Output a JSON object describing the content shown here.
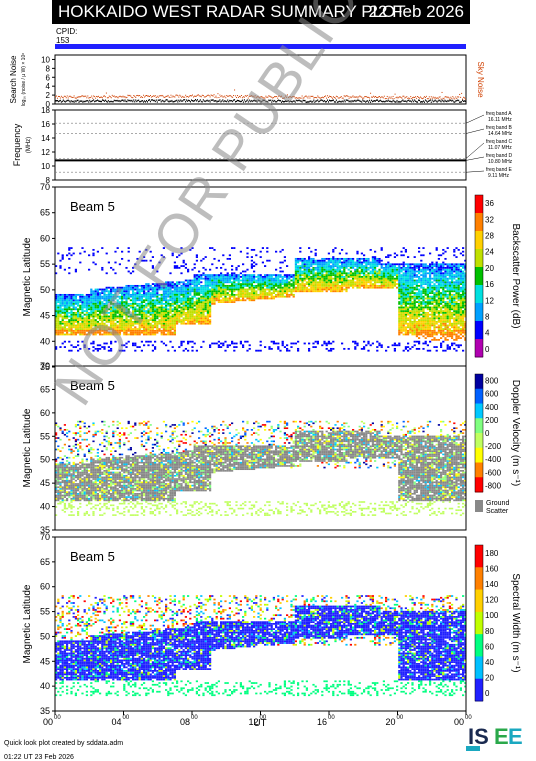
{
  "header": {
    "title": "HOKKAIDO WEST RADAR SUMMARY PLOT",
    "date": "22 Feb 2026",
    "cpid_label": "CPID:",
    "cpid_value": "153"
  },
  "watermark": "NOT FOR PUBLICATION",
  "footer": {
    "line1": "Quick look plot created by sddata.adm",
    "line2": "01:22 UT 23 Feb 2026"
  },
  "logo_text": "ISEE",
  "colors": {
    "power": [
      "#ffffff",
      "#b000b0",
      "#0000ff",
      "#00a0ff",
      "#00e0e0",
      "#00c000",
      "#c0e000",
      "#ffd000",
      "#ff8000",
      "#ff0000"
    ],
    "velocity": [
      "#ff0000",
      "#ff8000",
      "#ffff00",
      "#c0ff60",
      "#80ff80",
      "#00c8ff",
      "#0060ff",
      "#0000a0"
    ],
    "width": [
      "#2020ff",
      "#00c0ff",
      "#00ff80",
      "#c0ff00",
      "#ffd000",
      "#ff8000",
      "#ff0000"
    ],
    "ground": "#888888",
    "noise_sky": "#d04000",
    "noise_search": "#000000",
    "cpid_bar": "#2020ff"
  },
  "chart_data": [
    {
      "type": "scatter",
      "panel": "noise",
      "ylabel": "Search Noise",
      "ylabel_units": "log₁₀ (noise / µ W) × 10⁶",
      "ylim": [
        0,
        11
      ],
      "yticks": [
        0,
        2,
        4,
        6,
        8,
        10
      ],
      "legend": "Sky Noise",
      "series": [
        {
          "name": "Sky Noise",
          "x": [
            0,
            4,
            8,
            12,
            16,
            20,
            24
          ],
          "values": [
            1.6,
            1.8,
            1.9,
            1.7,
            1.7,
            1.6,
            1.5
          ]
        },
        {
          "name": "Search Noise",
          "x": [
            0,
            4,
            8,
            12,
            16,
            20,
            24
          ],
          "values": [
            0.8,
            0.8,
            0.9,
            0.8,
            0.8,
            0.8,
            0.8
          ]
        }
      ]
    },
    {
      "type": "line",
      "panel": "frequency",
      "ylabel": "Frequency",
      "ylabel_units": "(MHz)",
      "ylim": [
        8,
        18
      ],
      "yticks": [
        8,
        10,
        12,
        14,
        16,
        18
      ],
      "bands": [
        {
          "label": "freq band A",
          "value": "16.11 MHz"
        },
        {
          "label": "freq band B",
          "value": "14.64 MHz"
        },
        {
          "label": "freq band C",
          "value": "11.07 MHz"
        },
        {
          "label": "freq band D",
          "value": "10.80 MHz"
        },
        {
          "label": "freq band E",
          "value": "9.11 MHz"
        }
      ],
      "operating_frequency": [
        {
          "x": 0,
          "y": 10.8
        },
        {
          "x": 24,
          "y": 10.8
        }
      ]
    },
    {
      "type": "heatmap",
      "panel": "power",
      "label": "Beam  5",
      "ylabel": "Magnetic Latitude",
      "ylim": [
        35,
        70
      ],
      "yticks": [
        35,
        40,
        45,
        50,
        55,
        60,
        65,
        70
      ],
      "colorbar_label": "Backscatter Power (dB)",
      "colorbar_ticks": [
        "0",
        "4",
        "8",
        "12",
        "16",
        "20",
        "24",
        "28",
        "32",
        "36"
      ],
      "scatter_extent": {
        "lat_min": 39,
        "lat_max": 58
      }
    },
    {
      "type": "heatmap",
      "panel": "velocity",
      "label": "Beam  5",
      "ylabel": "Magnetic Latitude",
      "ylim": [
        35,
        70
      ],
      "yticks": [
        35,
        40,
        45,
        50,
        55,
        60,
        65,
        70
      ],
      "colorbar_label": "Doppler Velocity (m s⁻¹)",
      "colorbar_ticks": [
        "800",
        "600",
        "400",
        "200",
        "0",
        "-200",
        "-400",
        "-600",
        "-800"
      ],
      "ground_scatter_label": [
        "Ground",
        "Scatter"
      ]
    },
    {
      "type": "heatmap",
      "panel": "width",
      "label": "Beam  5",
      "ylabel": "Magnetic Latitude",
      "ylim": [
        35,
        70
      ],
      "yticks": [
        35,
        40,
        45,
        50,
        55,
        60,
        65,
        70
      ],
      "colorbar_label": "Spectral Width (m s⁻¹)",
      "colorbar_ticks": [
        "0",
        "20",
        "40",
        "60",
        "80",
        "100",
        "120",
        "140",
        "160",
        "180"
      ]
    }
  ],
  "xaxis": {
    "label": "UT",
    "xlim": [
      0,
      24
    ],
    "ticks": [
      "00",
      "04",
      "08",
      "12",
      "16",
      "20",
      "00"
    ],
    "tick_sup": "00"
  }
}
